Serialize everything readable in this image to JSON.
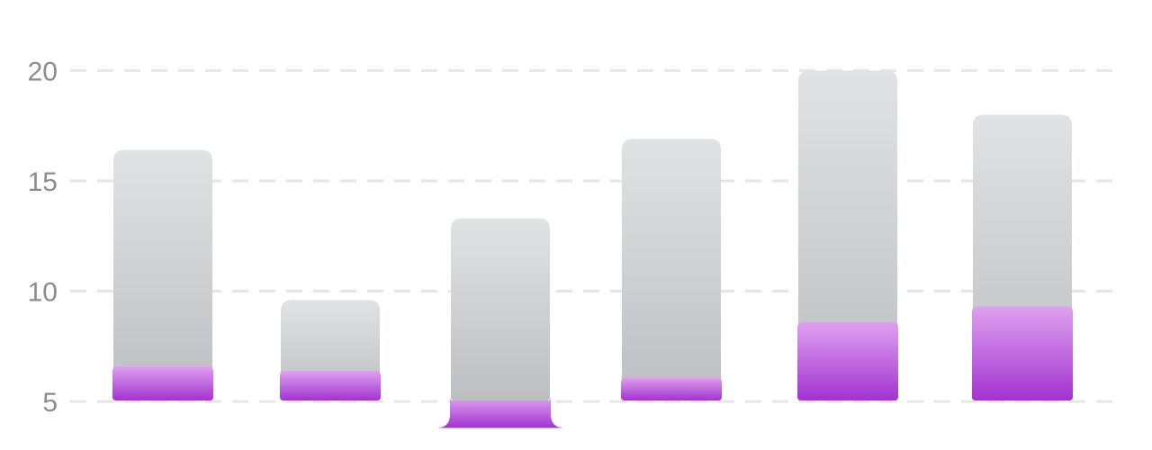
{
  "chart_data": {
    "type": "bar",
    "ylim": [
      2.8,
      23.2
    ],
    "yticks": [
      5,
      10,
      15,
      20
    ],
    "grid": true,
    "categories": [
      "",
      "",
      "",
      "",
      "",
      ""
    ],
    "series": [
      {
        "values": [
          16.4,
          9.6,
          13.3,
          16.9,
          20.0,
          18.0
        ]
      },
      {
        "values": [
          6.6,
          6.4,
          3.8,
          6.1,
          8.6,
          9.3
        ]
      }
    ],
    "colors": {
      "back_top": "#e1e2e4",
      "back_bottom": "#bdbec1",
      "front_top": "#dfa1ef",
      "front_bottom": "#a233d1",
      "grid": "#e6e6e6",
      "tick_label": "#8c8c8c"
    }
  }
}
